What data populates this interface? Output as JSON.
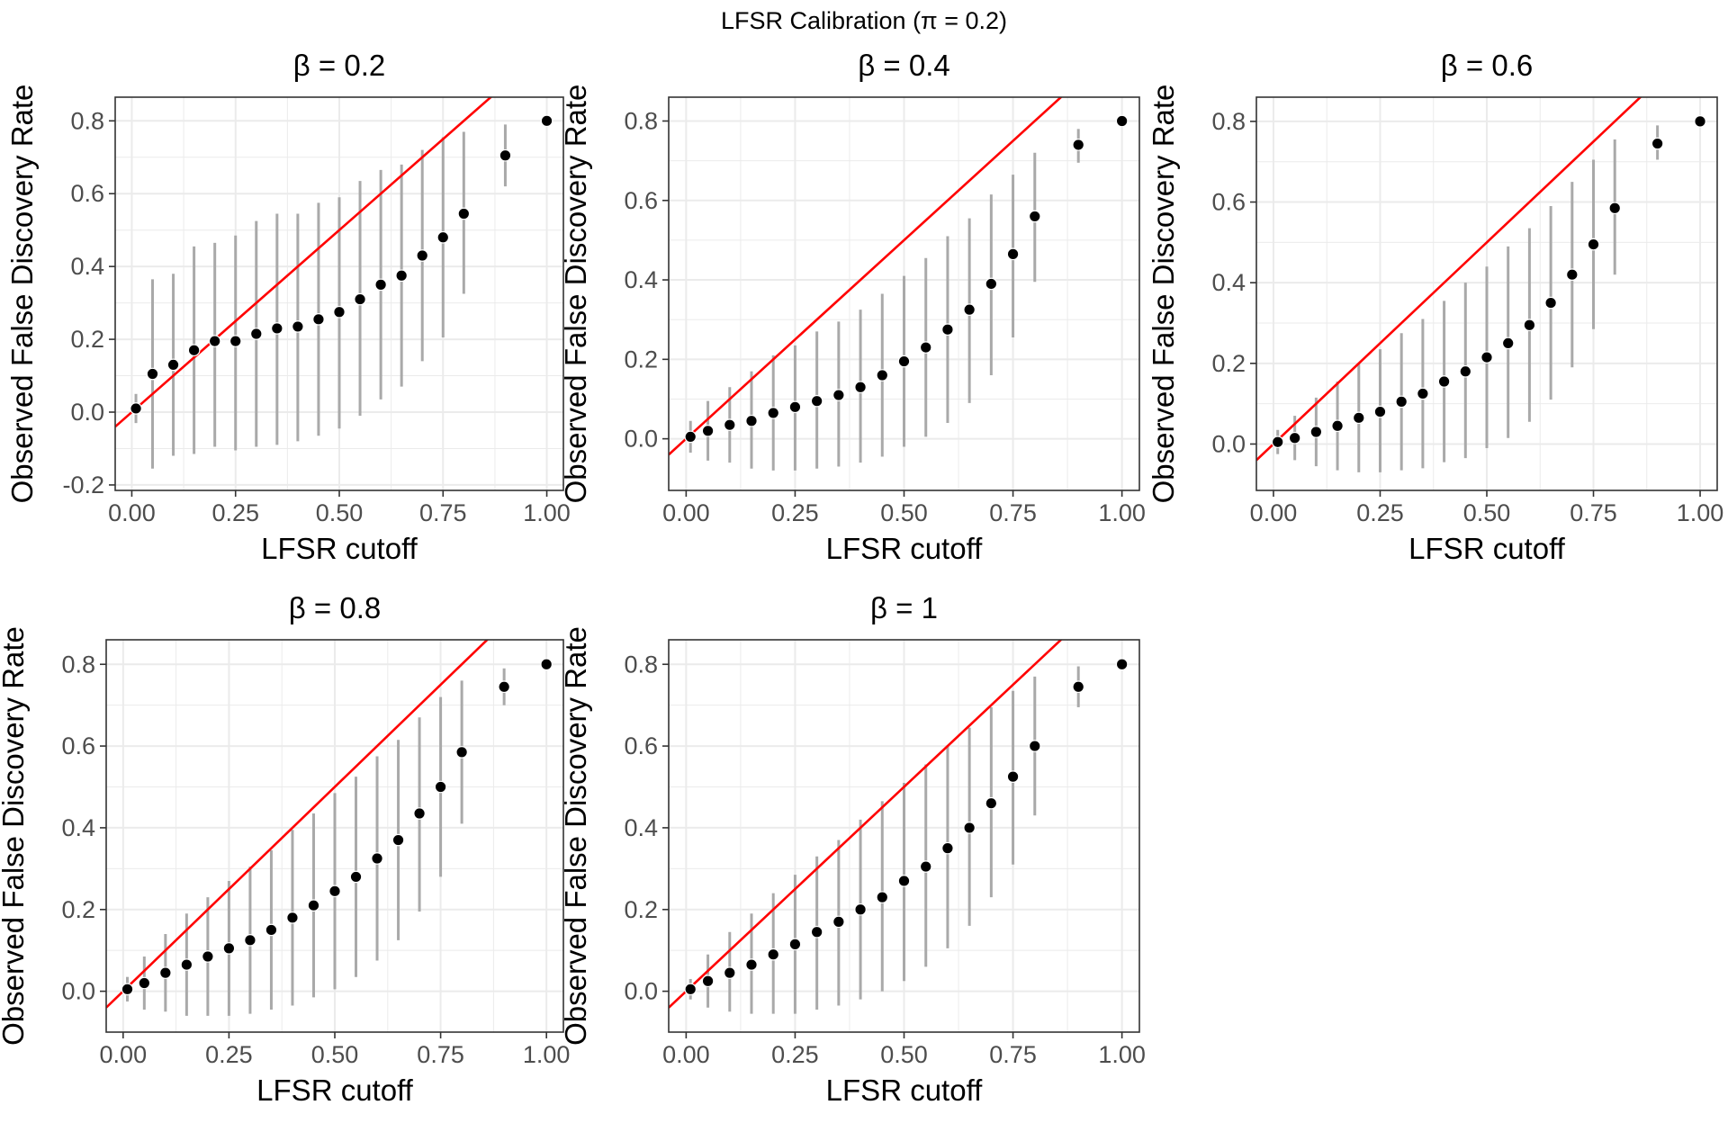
{
  "figure": {
    "title": "LFSR Calibration (π = 0.2)"
  },
  "chart_data": [
    {
      "type": "scatter",
      "title": "β = 0.2",
      "xlabel": "LFSR cutoff",
      "ylabel": "Observed False Discovery Rate",
      "xlim": [
        -0.04,
        1.04
      ],
      "ylim": [
        -0.215,
        0.865
      ],
      "xticks": [
        0,
        0.25,
        0.5,
        0.75,
        1
      ],
      "xtick_labels": [
        "0.00",
        "0.25",
        "0.50",
        "0.75",
        "1.00"
      ],
      "yticks": [
        -0.2,
        0,
        0.2,
        0.4,
        0.6,
        0.8
      ],
      "ytick_labels": [
        "-0.2",
        "0.0",
        "0.2",
        "0.4",
        "0.6",
        "0.8"
      ],
      "grid": true,
      "reference_line": {
        "slope": 1,
        "intercept": 0,
        "color": "#ff0000"
      },
      "points": [
        {
          "x": 0.01,
          "y": 0.01,
          "ymin": -0.03,
          "ymax": 0.05
        },
        {
          "x": 0.05,
          "y": 0.105,
          "ymin": -0.155,
          "ymax": 0.365
        },
        {
          "x": 0.1,
          "y": 0.13,
          "ymin": -0.12,
          "ymax": 0.38
        },
        {
          "x": 0.15,
          "y": 0.17,
          "ymin": -0.115,
          "ymax": 0.455
        },
        {
          "x": 0.2,
          "y": 0.195,
          "ymin": -0.095,
          "ymax": 0.465
        },
        {
          "x": 0.25,
          "y": 0.195,
          "ymin": -0.105,
          "ymax": 0.485
        },
        {
          "x": 0.3,
          "y": 0.215,
          "ymin": -0.095,
          "ymax": 0.525
        },
        {
          "x": 0.35,
          "y": 0.23,
          "ymin": -0.09,
          "ymax": 0.545
        },
        {
          "x": 0.4,
          "y": 0.235,
          "ymin": -0.08,
          "ymax": 0.545
        },
        {
          "x": 0.45,
          "y": 0.255,
          "ymin": -0.065,
          "ymax": 0.575
        },
        {
          "x": 0.5,
          "y": 0.275,
          "ymin": -0.045,
          "ymax": 0.59
        },
        {
          "x": 0.55,
          "y": 0.31,
          "ymin": -0.01,
          "ymax": 0.635
        },
        {
          "x": 0.6,
          "y": 0.35,
          "ymin": 0.035,
          "ymax": 0.665
        },
        {
          "x": 0.65,
          "y": 0.375,
          "ymin": 0.07,
          "ymax": 0.68
        },
        {
          "x": 0.7,
          "y": 0.43,
          "ymin": 0.14,
          "ymax": 0.72
        },
        {
          "x": 0.75,
          "y": 0.48,
          "ymin": 0.205,
          "ymax": 0.755
        },
        {
          "x": 0.8,
          "y": 0.545,
          "ymin": 0.325,
          "ymax": 0.77
        },
        {
          "x": 0.9,
          "y": 0.705,
          "ymin": 0.62,
          "ymax": 0.79
        },
        {
          "x": 1.0,
          "y": 0.8,
          "ymin": 0.8,
          "ymax": 0.8
        }
      ]
    },
    {
      "type": "scatter",
      "title": "β = 0.4",
      "xlabel": "LFSR cutoff",
      "ylabel": "Observed False Discovery Rate",
      "xlim": [
        -0.04,
        1.04
      ],
      "ylim": [
        -0.13,
        0.86
      ],
      "xticks": [
        0,
        0.25,
        0.5,
        0.75,
        1
      ],
      "xtick_labels": [
        "0.00",
        "0.25",
        "0.50",
        "0.75",
        "1.00"
      ],
      "yticks": [
        0,
        0.2,
        0.4,
        0.6,
        0.8
      ],
      "ytick_labels": [
        "0.0",
        "0.2",
        "0.4",
        "0.6",
        "0.8"
      ],
      "grid": true,
      "reference_line": {
        "slope": 1,
        "intercept": 0,
        "color": "#ff0000"
      },
      "points": [
        {
          "x": 0.01,
          "y": 0.005,
          "ymin": -0.035,
          "ymax": 0.045
        },
        {
          "x": 0.05,
          "y": 0.02,
          "ymin": -0.055,
          "ymax": 0.095
        },
        {
          "x": 0.1,
          "y": 0.035,
          "ymin": -0.06,
          "ymax": 0.13
        },
        {
          "x": 0.15,
          "y": 0.045,
          "ymin": -0.075,
          "ymax": 0.17
        },
        {
          "x": 0.2,
          "y": 0.065,
          "ymin": -0.08,
          "ymax": 0.21
        },
        {
          "x": 0.25,
          "y": 0.08,
          "ymin": -0.08,
          "ymax": 0.235
        },
        {
          "x": 0.3,
          "y": 0.095,
          "ymin": -0.075,
          "ymax": 0.27
        },
        {
          "x": 0.35,
          "y": 0.11,
          "ymin": -0.07,
          "ymax": 0.295
        },
        {
          "x": 0.4,
          "y": 0.13,
          "ymin": -0.06,
          "ymax": 0.325
        },
        {
          "x": 0.45,
          "y": 0.16,
          "ymin": -0.045,
          "ymax": 0.365
        },
        {
          "x": 0.5,
          "y": 0.195,
          "ymin": -0.02,
          "ymax": 0.41
        },
        {
          "x": 0.55,
          "y": 0.23,
          "ymin": 0.005,
          "ymax": 0.455
        },
        {
          "x": 0.6,
          "y": 0.275,
          "ymin": 0.04,
          "ymax": 0.51
        },
        {
          "x": 0.65,
          "y": 0.325,
          "ymin": 0.09,
          "ymax": 0.555
        },
        {
          "x": 0.7,
          "y": 0.39,
          "ymin": 0.16,
          "ymax": 0.615
        },
        {
          "x": 0.75,
          "y": 0.465,
          "ymin": 0.255,
          "ymax": 0.665
        },
        {
          "x": 0.8,
          "y": 0.56,
          "ymin": 0.395,
          "ymax": 0.72
        },
        {
          "x": 0.9,
          "y": 0.74,
          "ymin": 0.695,
          "ymax": 0.78
        },
        {
          "x": 1.0,
          "y": 0.8,
          "ymin": 0.8,
          "ymax": 0.8
        }
      ]
    },
    {
      "type": "scatter",
      "title": "β = 0.6",
      "xlabel": "LFSR cutoff",
      "ylabel": "Observed False Discovery Rate",
      "xlim": [
        -0.04,
        1.04
      ],
      "ylim": [
        -0.115,
        0.86
      ],
      "xticks": [
        0,
        0.25,
        0.5,
        0.75,
        1
      ],
      "xtick_labels": [
        "0.00",
        "0.25",
        "0.50",
        "0.75",
        "1.00"
      ],
      "yticks": [
        0,
        0.2,
        0.4,
        0.6,
        0.8
      ],
      "ytick_labels": [
        "0.0",
        "0.2",
        "0.4",
        "0.6",
        "0.8"
      ],
      "grid": true,
      "reference_line": {
        "slope": 1,
        "intercept": 0,
        "color": "#ff0000"
      },
      "points": [
        {
          "x": 0.01,
          "y": 0.005,
          "ymin": -0.025,
          "ymax": 0.035
        },
        {
          "x": 0.05,
          "y": 0.015,
          "ymin": -0.04,
          "ymax": 0.07
        },
        {
          "x": 0.1,
          "y": 0.03,
          "ymin": -0.055,
          "ymax": 0.115
        },
        {
          "x": 0.15,
          "y": 0.045,
          "ymin": -0.065,
          "ymax": 0.155
        },
        {
          "x": 0.2,
          "y": 0.065,
          "ymin": -0.07,
          "ymax": 0.2
        },
        {
          "x": 0.25,
          "y": 0.08,
          "ymin": -0.07,
          "ymax": 0.235
        },
        {
          "x": 0.3,
          "y": 0.105,
          "ymin": -0.065,
          "ymax": 0.275
        },
        {
          "x": 0.35,
          "y": 0.125,
          "ymin": -0.06,
          "ymax": 0.31
        },
        {
          "x": 0.4,
          "y": 0.155,
          "ymin": -0.045,
          "ymax": 0.355
        },
        {
          "x": 0.45,
          "y": 0.18,
          "ymin": -0.035,
          "ymax": 0.4
        },
        {
          "x": 0.5,
          "y": 0.215,
          "ymin": -0.01,
          "ymax": 0.44
        },
        {
          "x": 0.55,
          "y": 0.25,
          "ymin": 0.015,
          "ymax": 0.49
        },
        {
          "x": 0.6,
          "y": 0.295,
          "ymin": 0.055,
          "ymax": 0.535
        },
        {
          "x": 0.65,
          "y": 0.35,
          "ymin": 0.11,
          "ymax": 0.59
        },
        {
          "x": 0.7,
          "y": 0.42,
          "ymin": 0.19,
          "ymax": 0.65
        },
        {
          "x": 0.75,
          "y": 0.495,
          "ymin": 0.285,
          "ymax": 0.705
        },
        {
          "x": 0.8,
          "y": 0.585,
          "ymin": 0.42,
          "ymax": 0.755
        },
        {
          "x": 0.9,
          "y": 0.745,
          "ymin": 0.705,
          "ymax": 0.79
        },
        {
          "x": 1.0,
          "y": 0.8,
          "ymin": 0.8,
          "ymax": 0.8
        }
      ]
    },
    {
      "type": "scatter",
      "title": "β = 0.8",
      "xlabel": "LFSR cutoff",
      "ylabel": "Observed False Discovery Rate",
      "xlim": [
        -0.04,
        1.04
      ],
      "ylim": [
        -0.1,
        0.86
      ],
      "xticks": [
        0,
        0.25,
        0.5,
        0.75,
        1
      ],
      "xtick_labels": [
        "0.00",
        "0.25",
        "0.50",
        "0.75",
        "1.00"
      ],
      "yticks": [
        0,
        0.2,
        0.4,
        0.6,
        0.8
      ],
      "ytick_labels": [
        "0.0",
        "0.2",
        "0.4",
        "0.6",
        "0.8"
      ],
      "grid": true,
      "reference_line": {
        "slope": 1,
        "intercept": 0,
        "color": "#ff0000"
      },
      "points": [
        {
          "x": 0.01,
          "y": 0.005,
          "ymin": -0.025,
          "ymax": 0.035
        },
        {
          "x": 0.05,
          "y": 0.02,
          "ymin": -0.045,
          "ymax": 0.085
        },
        {
          "x": 0.1,
          "y": 0.045,
          "ymin": -0.05,
          "ymax": 0.14
        },
        {
          "x": 0.15,
          "y": 0.065,
          "ymin": -0.06,
          "ymax": 0.19
        },
        {
          "x": 0.2,
          "y": 0.085,
          "ymin": -0.06,
          "ymax": 0.23
        },
        {
          "x": 0.25,
          "y": 0.105,
          "ymin": -0.06,
          "ymax": 0.27
        },
        {
          "x": 0.3,
          "y": 0.125,
          "ymin": -0.055,
          "ymax": 0.305
        },
        {
          "x": 0.35,
          "y": 0.15,
          "ymin": -0.045,
          "ymax": 0.345
        },
        {
          "x": 0.4,
          "y": 0.18,
          "ymin": -0.035,
          "ymax": 0.395
        },
        {
          "x": 0.45,
          "y": 0.21,
          "ymin": -0.015,
          "ymax": 0.435
        },
        {
          "x": 0.5,
          "y": 0.245,
          "ymin": 0.005,
          "ymax": 0.485
        },
        {
          "x": 0.55,
          "y": 0.28,
          "ymin": 0.035,
          "ymax": 0.525
        },
        {
          "x": 0.6,
          "y": 0.325,
          "ymin": 0.075,
          "ymax": 0.575
        },
        {
          "x": 0.65,
          "y": 0.37,
          "ymin": 0.125,
          "ymax": 0.615
        },
        {
          "x": 0.7,
          "y": 0.435,
          "ymin": 0.195,
          "ymax": 0.67
        },
        {
          "x": 0.75,
          "y": 0.5,
          "ymin": 0.28,
          "ymax": 0.72
        },
        {
          "x": 0.8,
          "y": 0.585,
          "ymin": 0.41,
          "ymax": 0.76
        },
        {
          "x": 0.9,
          "y": 0.745,
          "ymin": 0.7,
          "ymax": 0.79
        },
        {
          "x": 1.0,
          "y": 0.8,
          "ymin": 0.8,
          "ymax": 0.8
        }
      ]
    },
    {
      "type": "scatter",
      "title": "β = 1",
      "xlabel": "LFSR cutoff",
      "ylabel": "Observed False Discovery Rate",
      "xlim": [
        -0.04,
        1.04
      ],
      "ylim": [
        -0.1,
        0.86
      ],
      "xticks": [
        0,
        0.25,
        0.5,
        0.75,
        1
      ],
      "xtick_labels": [
        "0.00",
        "0.25",
        "0.50",
        "0.75",
        "1.00"
      ],
      "yticks": [
        0,
        0.2,
        0.4,
        0.6,
        0.8
      ],
      "ytick_labels": [
        "0.0",
        "0.2",
        "0.4",
        "0.6",
        "0.8"
      ],
      "grid": true,
      "reference_line": {
        "slope": 1,
        "intercept": 0,
        "color": "#ff0000"
      },
      "points": [
        {
          "x": 0.01,
          "y": 0.005,
          "ymin": -0.02,
          "ymax": 0.03
        },
        {
          "x": 0.05,
          "y": 0.025,
          "ymin": -0.04,
          "ymax": 0.09
        },
        {
          "x": 0.1,
          "y": 0.045,
          "ymin": -0.05,
          "ymax": 0.145
        },
        {
          "x": 0.15,
          "y": 0.065,
          "ymin": -0.055,
          "ymax": 0.19
        },
        {
          "x": 0.2,
          "y": 0.09,
          "ymin": -0.055,
          "ymax": 0.24
        },
        {
          "x": 0.25,
          "y": 0.115,
          "ymin": -0.055,
          "ymax": 0.285
        },
        {
          "x": 0.3,
          "y": 0.145,
          "ymin": -0.045,
          "ymax": 0.33
        },
        {
          "x": 0.35,
          "y": 0.17,
          "ymin": -0.035,
          "ymax": 0.37
        },
        {
          "x": 0.4,
          "y": 0.2,
          "ymin": -0.02,
          "ymax": 0.42
        },
        {
          "x": 0.45,
          "y": 0.23,
          "ymin": 0.0,
          "ymax": 0.465
        },
        {
          "x": 0.5,
          "y": 0.27,
          "ymin": 0.025,
          "ymax": 0.51
        },
        {
          "x": 0.55,
          "y": 0.305,
          "ymin": 0.06,
          "ymax": 0.555
        },
        {
          "x": 0.6,
          "y": 0.35,
          "ymin": 0.105,
          "ymax": 0.6
        },
        {
          "x": 0.65,
          "y": 0.4,
          "ymin": 0.16,
          "ymax": 0.645
        },
        {
          "x": 0.7,
          "y": 0.46,
          "ymin": 0.23,
          "ymax": 0.695
        },
        {
          "x": 0.75,
          "y": 0.525,
          "ymin": 0.31,
          "ymax": 0.735
        },
        {
          "x": 0.8,
          "y": 0.6,
          "ymin": 0.43,
          "ymax": 0.77
        },
        {
          "x": 0.9,
          "y": 0.745,
          "ymin": 0.695,
          "ymax": 0.795
        },
        {
          "x": 1.0,
          "y": 0.8,
          "ymin": 0.8,
          "ymax": 0.8
        }
      ]
    }
  ]
}
